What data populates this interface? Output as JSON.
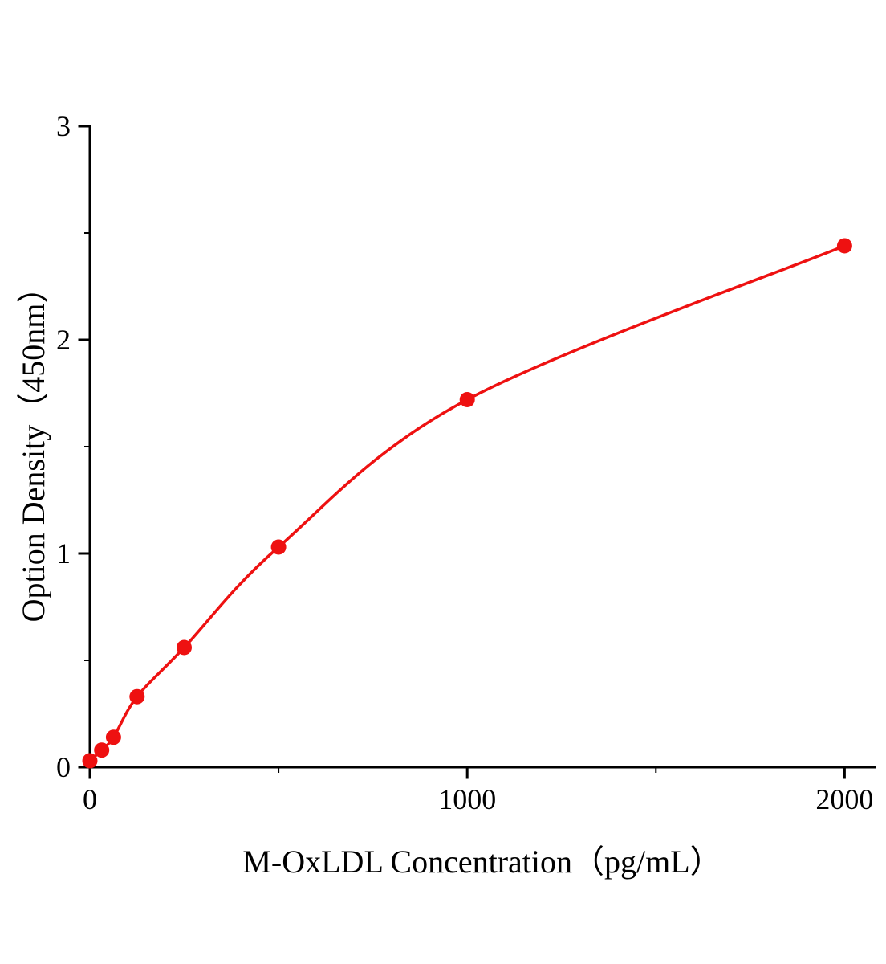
{
  "chart_data": {
    "type": "scatter",
    "title": "",
    "xlabel": "M-OxLDL Concentration（pg/mL）",
    "ylabel": "Option Density（450nm）",
    "x": [
      0,
      31.25,
      62.5,
      125,
      250,
      500,
      1000,
      2000
    ],
    "y": [
      0.03,
      0.08,
      0.14,
      0.33,
      0.56,
      1.03,
      1.72,
      2.44
    ],
    "xlim": [
      0,
      2080
    ],
    "ylim": [
      0,
      3
    ],
    "xticks": [
      0,
      1000,
      2000
    ],
    "xminorticks": [
      500,
      1500
    ],
    "yticks": [
      0,
      1,
      2,
      3
    ],
    "yminorticks": [
      0.5,
      1.5,
      2.5
    ],
    "grid": false,
    "legend": false,
    "line_color": "#ee1111",
    "marker_color": "#ee1111",
    "axis_color": "#000000"
  }
}
